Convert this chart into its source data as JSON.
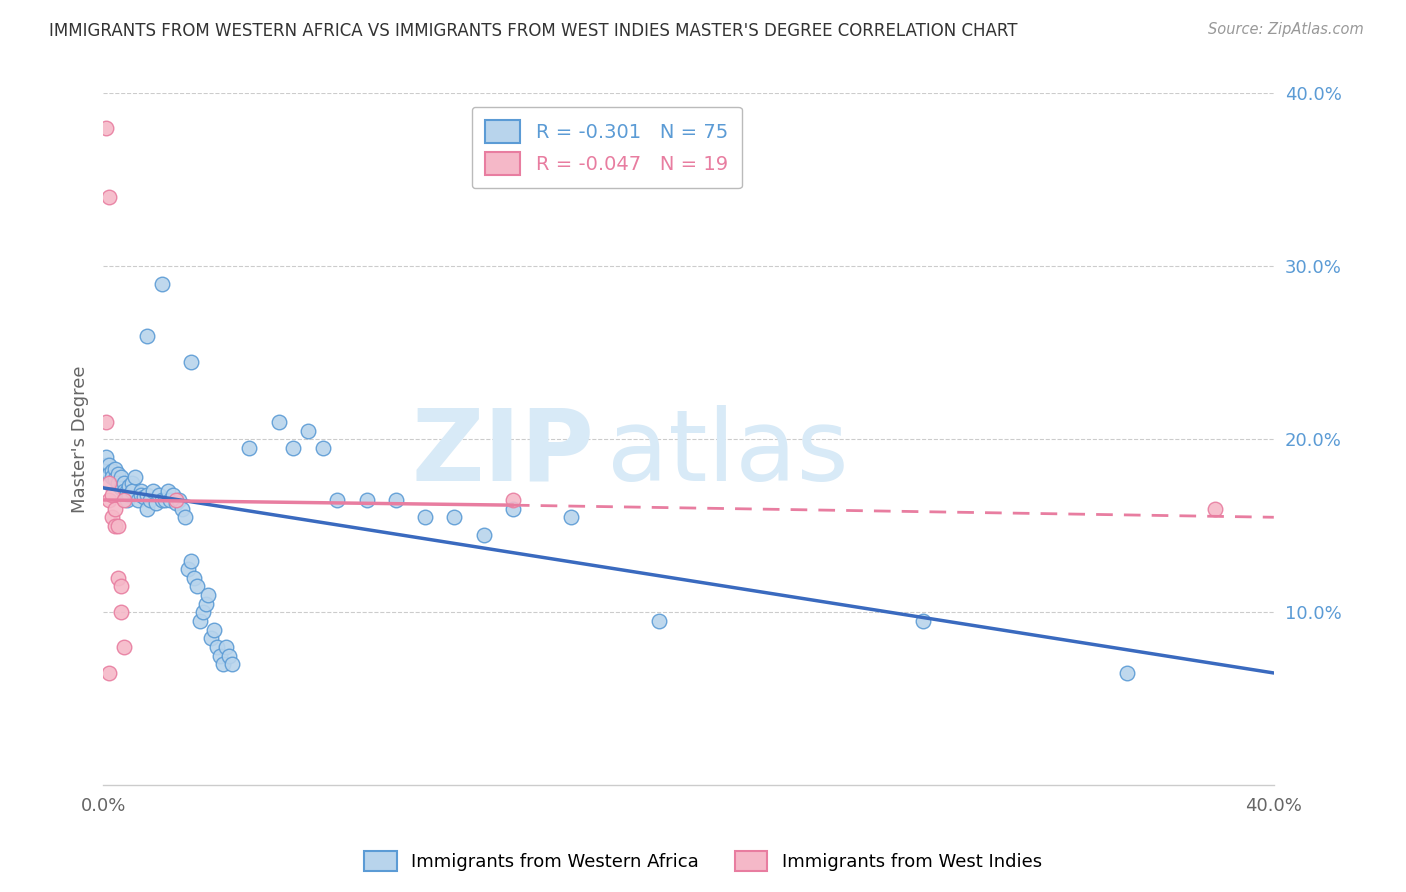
{
  "title": "IMMIGRANTS FROM WESTERN AFRICA VS IMMIGRANTS FROM WEST INDIES MASTER'S DEGREE CORRELATION CHART",
  "source": "Source: ZipAtlas.com",
  "ylabel": "Master's Degree",
  "xlim": [
    0.0,
    0.4
  ],
  "ylim": [
    0.0,
    0.4
  ],
  "ytick_vals": [
    0.1,
    0.2,
    0.3,
    0.4
  ],
  "ytick_labels": [
    "10.0%",
    "20.0%",
    "30.0%",
    "40.0%"
  ],
  "xtick_vals": [
    0.0,
    0.1,
    0.2,
    0.3,
    0.4
  ],
  "xtick_labels": [
    "0.0%",
    "",
    "",
    "",
    "40.0%"
  ],
  "legend_blue_label": "R = -0.301   N = 75",
  "legend_pink_label": "R = -0.047   N = 19",
  "footer_blue": "Immigrants from Western Africa",
  "footer_pink": "Immigrants from West Indies",
  "blue_fill_color": "#b8d4ec",
  "blue_edge_color": "#5b9bd5",
  "pink_fill_color": "#f5b8c8",
  "pink_edge_color": "#e87da0",
  "blue_line_color": "#3a6abf",
  "pink_line_color": "#e87da0",
  "right_axis_color": "#5b9bd5",
  "watermark_color": "#d8eaf7",
  "blue_scatter": [
    [
      0.001,
      0.185
    ],
    [
      0.001,
      0.19
    ],
    [
      0.002,
      0.185
    ],
    [
      0.002,
      0.18
    ],
    [
      0.003,
      0.182
    ],
    [
      0.003,
      0.178
    ],
    [
      0.004,
      0.183
    ],
    [
      0.004,
      0.177
    ],
    [
      0.005,
      0.18
    ],
    [
      0.005,
      0.175
    ],
    [
      0.006,
      0.178
    ],
    [
      0.006,
      0.172
    ],
    [
      0.007,
      0.175
    ],
    [
      0.007,
      0.17
    ],
    [
      0.008,
      0.17
    ],
    [
      0.008,
      0.165
    ],
    [
      0.009,
      0.173
    ],
    [
      0.009,
      0.168
    ],
    [
      0.01,
      0.175
    ],
    [
      0.01,
      0.17
    ],
    [
      0.011,
      0.178
    ],
    [
      0.012,
      0.165
    ],
    [
      0.013,
      0.17
    ],
    [
      0.013,
      0.168
    ],
    [
      0.014,
      0.167
    ],
    [
      0.015,
      0.16
    ],
    [
      0.015,
      0.168
    ],
    [
      0.016,
      0.165
    ],
    [
      0.017,
      0.17
    ],
    [
      0.018,
      0.163
    ],
    [
      0.019,
      0.168
    ],
    [
      0.02,
      0.165
    ],
    [
      0.021,
      0.165
    ],
    [
      0.022,
      0.17
    ],
    [
      0.023,
      0.165
    ],
    [
      0.024,
      0.168
    ],
    [
      0.025,
      0.163
    ],
    [
      0.026,
      0.165
    ],
    [
      0.027,
      0.16
    ],
    [
      0.028,
      0.155
    ],
    [
      0.029,
      0.125
    ],
    [
      0.03,
      0.13
    ],
    [
      0.031,
      0.12
    ],
    [
      0.032,
      0.115
    ],
    [
      0.033,
      0.095
    ],
    [
      0.034,
      0.1
    ],
    [
      0.035,
      0.105
    ],
    [
      0.036,
      0.11
    ],
    [
      0.037,
      0.085
    ],
    [
      0.038,
      0.09
    ],
    [
      0.039,
      0.08
    ],
    [
      0.04,
      0.075
    ],
    [
      0.041,
      0.07
    ],
    [
      0.042,
      0.08
    ],
    [
      0.043,
      0.075
    ],
    [
      0.044,
      0.07
    ],
    [
      0.02,
      0.29
    ],
    [
      0.03,
      0.245
    ],
    [
      0.015,
      0.26
    ],
    [
      0.05,
      0.195
    ],
    [
      0.06,
      0.21
    ],
    [
      0.065,
      0.195
    ],
    [
      0.07,
      0.205
    ],
    [
      0.075,
      0.195
    ],
    [
      0.08,
      0.165
    ],
    [
      0.09,
      0.165
    ],
    [
      0.1,
      0.165
    ],
    [
      0.11,
      0.155
    ],
    [
      0.12,
      0.155
    ],
    [
      0.13,
      0.145
    ],
    [
      0.14,
      0.16
    ],
    [
      0.16,
      0.155
    ],
    [
      0.19,
      0.095
    ],
    [
      0.28,
      0.095
    ],
    [
      0.35,
      0.065
    ]
  ],
  "pink_scatter": [
    [
      0.001,
      0.38
    ],
    [
      0.002,
      0.34
    ],
    [
      0.001,
      0.21
    ],
    [
      0.002,
      0.175
    ],
    [
      0.002,
      0.165
    ],
    [
      0.003,
      0.168
    ],
    [
      0.003,
      0.155
    ],
    [
      0.004,
      0.16
    ],
    [
      0.004,
      0.15
    ],
    [
      0.005,
      0.15
    ],
    [
      0.005,
      0.12
    ],
    [
      0.006,
      0.115
    ],
    [
      0.006,
      0.1
    ],
    [
      0.007,
      0.08
    ],
    [
      0.007,
      0.165
    ],
    [
      0.025,
      0.165
    ],
    [
      0.14,
      0.165
    ],
    [
      0.38,
      0.16
    ],
    [
      0.002,
      0.065
    ]
  ],
  "blue_trendline_solid": [
    [
      0.0,
      0.172
    ],
    [
      0.145,
      0.145
    ]
  ],
  "blue_trendline_full": [
    [
      0.0,
      0.172
    ],
    [
      0.4,
      0.065
    ]
  ],
  "pink_trendline_solid": [
    [
      0.0,
      0.165
    ],
    [
      0.14,
      0.162
    ]
  ],
  "pink_trendline_dashed": [
    [
      0.14,
      0.162
    ],
    [
      0.4,
      0.155
    ]
  ]
}
